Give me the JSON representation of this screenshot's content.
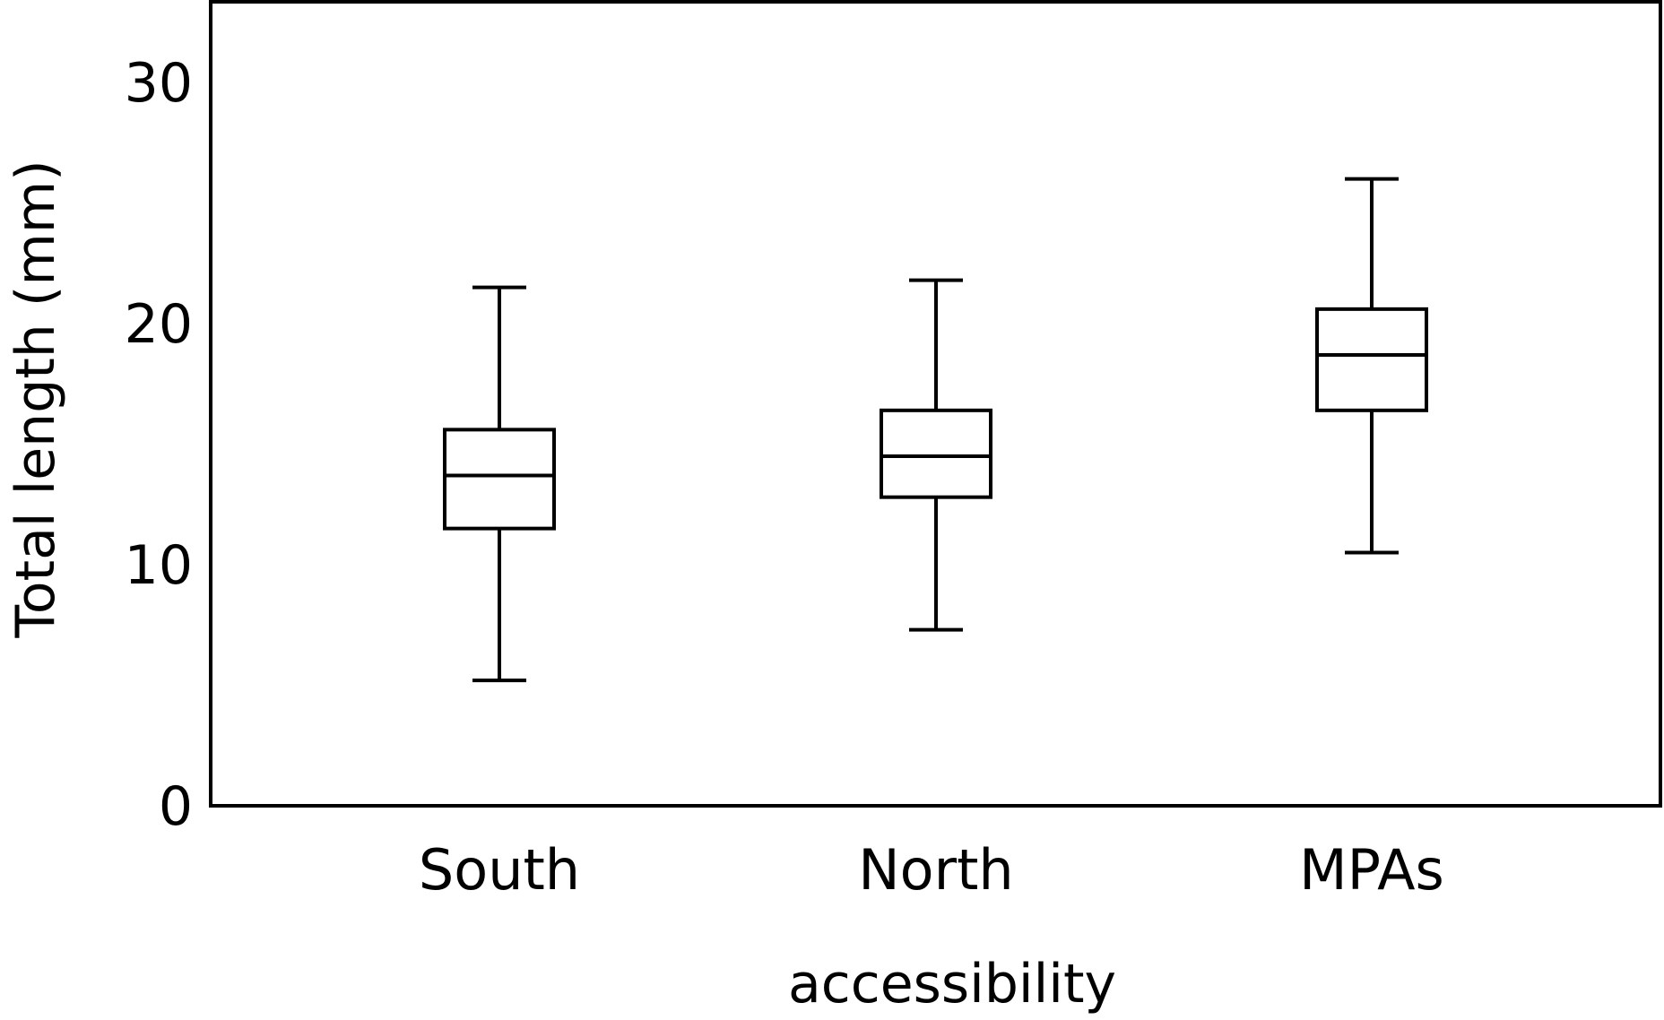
{
  "chart_data": {
    "type": "box",
    "categories": [
      "South",
      "North",
      "MPAs"
    ],
    "boxes": [
      {
        "category": "South",
        "whisker_low": 5.2,
        "q1": 11.5,
        "median": 13.7,
        "q3": 15.6,
        "whisker_high": 21.5
      },
      {
        "category": "North",
        "whisker_low": 7.3,
        "q1": 12.8,
        "median": 14.5,
        "q3": 16.4,
        "whisker_high": 21.8
      },
      {
        "category": "MPAs",
        "whisker_low": 10.5,
        "q1": 16.4,
        "median": 18.7,
        "q3": 20.6,
        "whisker_high": 26.0
      }
    ],
    "xlabel": "accessibility",
    "ylabel": "Total length (mm)",
    "ylim": [
      0,
      33
    ],
    "yticks": [
      0,
      10,
      20,
      30
    ],
    "ytick_labels": [
      "0",
      "10",
      "20",
      "30"
    ],
    "grid": false,
    "legend": "none",
    "colors": {
      "stroke": "#000000",
      "fill": "#ffffff"
    }
  }
}
